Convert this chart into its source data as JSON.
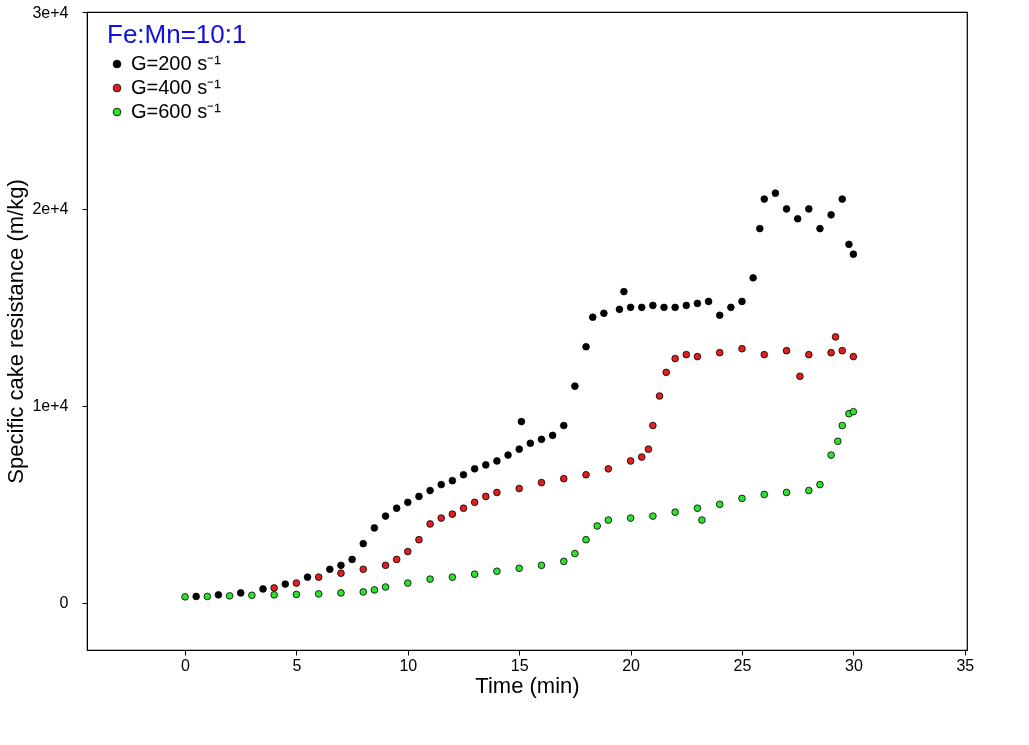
{
  "chart_data": {
    "type": "scatter",
    "xlabel": "Time (min)",
    "ylabel": "Specific cake resistance (m/kg)",
    "legend_title": "Fe:Mn=10:1",
    "xlim": [
      -4.4,
      35.1
    ],
    "xticks": [
      0,
      5,
      10,
      15,
      20,
      25,
      30,
      35
    ],
    "ylim": [
      -2400,
      30000
    ],
    "yticks": [
      0,
      {
        "value": 10000,
        "label": "1e+4"
      },
      {
        "value": 20000,
        "label": "2e+4"
      },
      {
        "value": 30000,
        "label": "3e+4"
      }
    ],
    "legend": "top left",
    "grid": false,
    "marker": "circle",
    "series": [
      {
        "name": "G=200 s⁻¹",
        "color": "#000000",
        "x": [
          0.5,
          1.5,
          2.5,
          3.5,
          4.5,
          5.5,
          6.5,
          7,
          7.5,
          8,
          8.5,
          9,
          9.5,
          10,
          10.5,
          11,
          11.5,
          12,
          12.5,
          13,
          13.5,
          14,
          14.5,
          15,
          15.1,
          15.5,
          16,
          16.5,
          17,
          17.5,
          18,
          18.3,
          18.8,
          19.5,
          19.7,
          20,
          20.5,
          21,
          21.5,
          22,
          22.5,
          23,
          23.5,
          24,
          24.5,
          25,
          25.5,
          25.8,
          26,
          26.5,
          27,
          27.5,
          28,
          28.5,
          29,
          29.5,
          29.8,
          30
        ],
        "values": [
          320,
          400,
          500,
          700,
          950,
          1300,
          1700,
          1900,
          2200,
          3000,
          3800,
          4400,
          4800,
          5100,
          5400,
          5700,
          6000,
          6200,
          6500,
          6800,
          7000,
          7200,
          7500,
          7800,
          9200,
          8100,
          8300,
          8500,
          9000,
          11000,
          13000,
          14500,
          14700,
          14900,
          15800,
          15000,
          15000,
          15100,
          15000,
          15000,
          15100,
          15200,
          15300,
          14600,
          15000,
          15300,
          16500,
          19000,
          20500,
          20800,
          20000,
          19500,
          20000,
          19000,
          19700,
          20500,
          18200,
          17700
        ]
      },
      {
        "name": "G=400 s⁻¹",
        "color": "#e02020",
        "x": [
          4,
          5,
          6,
          7,
          8,
          9,
          9.5,
          10,
          10.5,
          11,
          11.5,
          12,
          12.5,
          13,
          13.5,
          14,
          15,
          16,
          17,
          18,
          19,
          20,
          20.5,
          20.8,
          21,
          21.3,
          21.6,
          22,
          22.5,
          23,
          24,
          25,
          26,
          27,
          27.6,
          28,
          29,
          29.2,
          29.5,
          30
        ],
        "values": [
          750,
          1000,
          1300,
          1500,
          1700,
          1900,
          2200,
          2600,
          3200,
          4000,
          4300,
          4500,
          4800,
          5100,
          5400,
          5600,
          5800,
          6100,
          6300,
          6500,
          6800,
          7200,
          7400,
          7800,
          9000,
          10500,
          11700,
          12400,
          12600,
          12500,
          12700,
          12900,
          12600,
          12800,
          11500,
          12600,
          12700,
          13500,
          12800,
          12500
        ]
      },
      {
        "name": "G=600 s⁻¹",
        "color": "#30e030",
        "x": [
          0,
          1,
          2,
          3,
          4,
          5,
          6,
          7,
          8,
          8.5,
          9,
          10,
          11,
          12,
          13,
          14,
          15,
          16,
          17,
          17.5,
          18,
          18.5,
          19,
          20,
          21,
          22,
          23,
          23.2,
          24,
          25,
          26,
          27,
          28,
          28.5,
          29,
          29.3,
          29.5,
          29.8,
          30
        ],
        "values": [
          300,
          320,
          350,
          380,
          400,
          420,
          450,
          500,
          550,
          650,
          800,
          1000,
          1200,
          1300,
          1450,
          1600,
          1750,
          1900,
          2100,
          2500,
          3200,
          3900,
          4200,
          4300,
          4400,
          4600,
          4800,
          4200,
          5000,
          5300,
          5500,
          5600,
          5700,
          6000,
          7500,
          8200,
          9000,
          9600,
          9700
        ]
      }
    ]
  }
}
